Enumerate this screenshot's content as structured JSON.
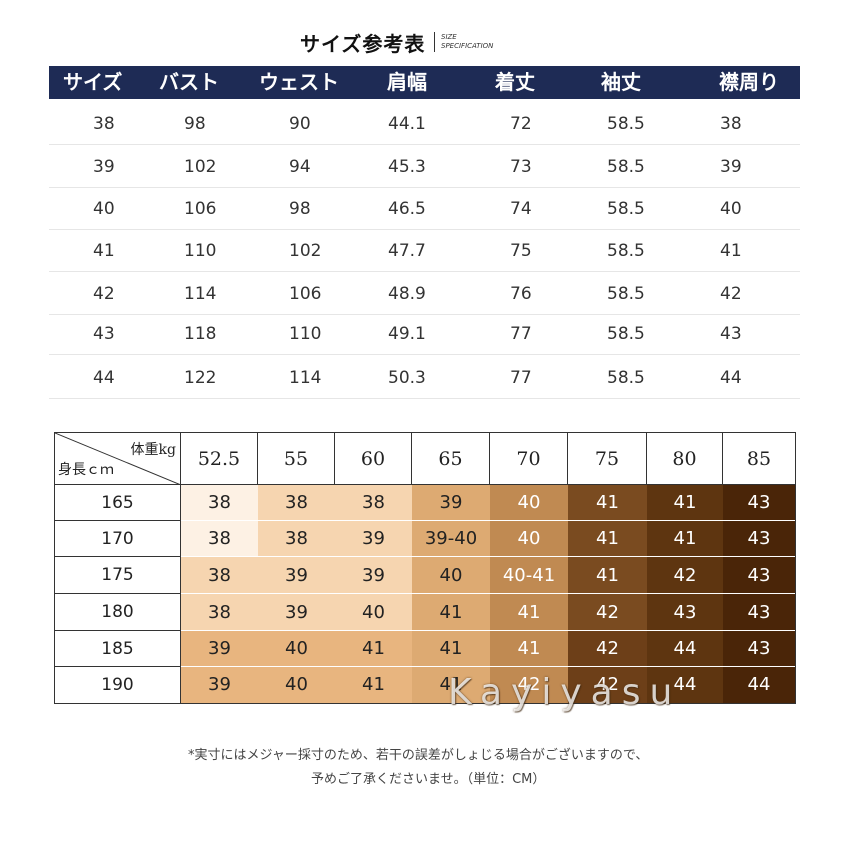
{
  "title": {
    "main": "サイズ参考表",
    "sub_line1": "SIZE",
    "sub_line2": "SPECIFICATION"
  },
  "size_table": {
    "headers": [
      "サイズ",
      "バスト",
      "ウェスト",
      "肩幅",
      "着丈",
      "袖丈",
      "襟周り"
    ],
    "rows": [
      [
        "38",
        "98",
        "90",
        "44.1",
        "72",
        "58.5",
        "38"
      ],
      [
        "39",
        "102",
        "94",
        "45.3",
        "73",
        "58.5",
        "39"
      ],
      [
        "40",
        "106",
        "98",
        "46.5",
        "74",
        "58.5",
        "40"
      ],
      [
        "41",
        "110",
        "102",
        "47.7",
        "75",
        "58.5",
        "41"
      ],
      [
        "42",
        "114",
        "106",
        "48.9",
        "76",
        "58.5",
        "42"
      ],
      [
        "43",
        "118",
        "110",
        "49.1",
        "77",
        "58.5",
        "43"
      ],
      [
        "44",
        "122",
        "114",
        "50.3",
        "77",
        "58.5",
        "44"
      ]
    ]
  },
  "weight_height_grid": {
    "corner_weight_label": "体重kg",
    "corner_height_label": "身長ｃｍ",
    "weights": [
      "52.5",
      "55",
      "60",
      "65",
      "70",
      "75",
      "80",
      "85"
    ],
    "heights": [
      "165",
      "170",
      "175",
      "180",
      "185",
      "190"
    ],
    "cells": [
      [
        "38",
        "38",
        "38",
        "39",
        "40",
        "41",
        "41",
        "43"
      ],
      [
        "38",
        "38",
        "39",
        "39-40",
        "40",
        "41",
        "41",
        "43"
      ],
      [
        "38",
        "39",
        "39",
        "40",
        "40-41",
        "41",
        "42",
        "43"
      ],
      [
        "38",
        "39",
        "40",
        "41",
        "41",
        "42",
        "43",
        "43"
      ],
      [
        "39",
        "40",
        "41",
        "41",
        "41",
        "42",
        "44",
        "43"
      ],
      [
        "39",
        "40",
        "41",
        "41",
        "42",
        "42",
        "44",
        "44"
      ]
    ],
    "colors": [
      [
        "#fdf1e4",
        "#f6d5b0",
        "#f6d5b0",
        "#ddaa72",
        "#c08a52",
        "#7a4b20",
        "#5e3510",
        "#4a2508"
      ],
      [
        "#fdf1e4",
        "#f6d5b0",
        "#f6d5b0",
        "#ddaa72",
        "#c08a52",
        "#7a4b20",
        "#5e3510",
        "#4a2508"
      ],
      [
        "#f6d5b0",
        "#f6d5b0",
        "#f6d5b0",
        "#ddaa72",
        "#c08a52",
        "#7a4b20",
        "#5e3510",
        "#4a2508"
      ],
      [
        "#f6d5b0",
        "#f6d5b0",
        "#f6d5b0",
        "#ddaa72",
        "#c08a52",
        "#7a4b20",
        "#5e3510",
        "#4a2508"
      ],
      [
        "#e8b57f",
        "#e8b57f",
        "#e8b57f",
        "#ddaa72",
        "#c08a52",
        "#6d3f18",
        "#5e3510",
        "#4a2508"
      ],
      [
        "#e8b57f",
        "#e8b57f",
        "#e8b57f",
        "#ddaa72",
        "#c08a52",
        "#6d3f18",
        "#5e3510",
        "#4a2508"
      ]
    ]
  },
  "watermark": "Kayiyasu",
  "notes": {
    "line1": "*実寸にはメジャー採寸のため、若干の誤差がしょじる場合がございますので、",
    "line2": "予めご了承くださいませ。（単位：CM）"
  }
}
